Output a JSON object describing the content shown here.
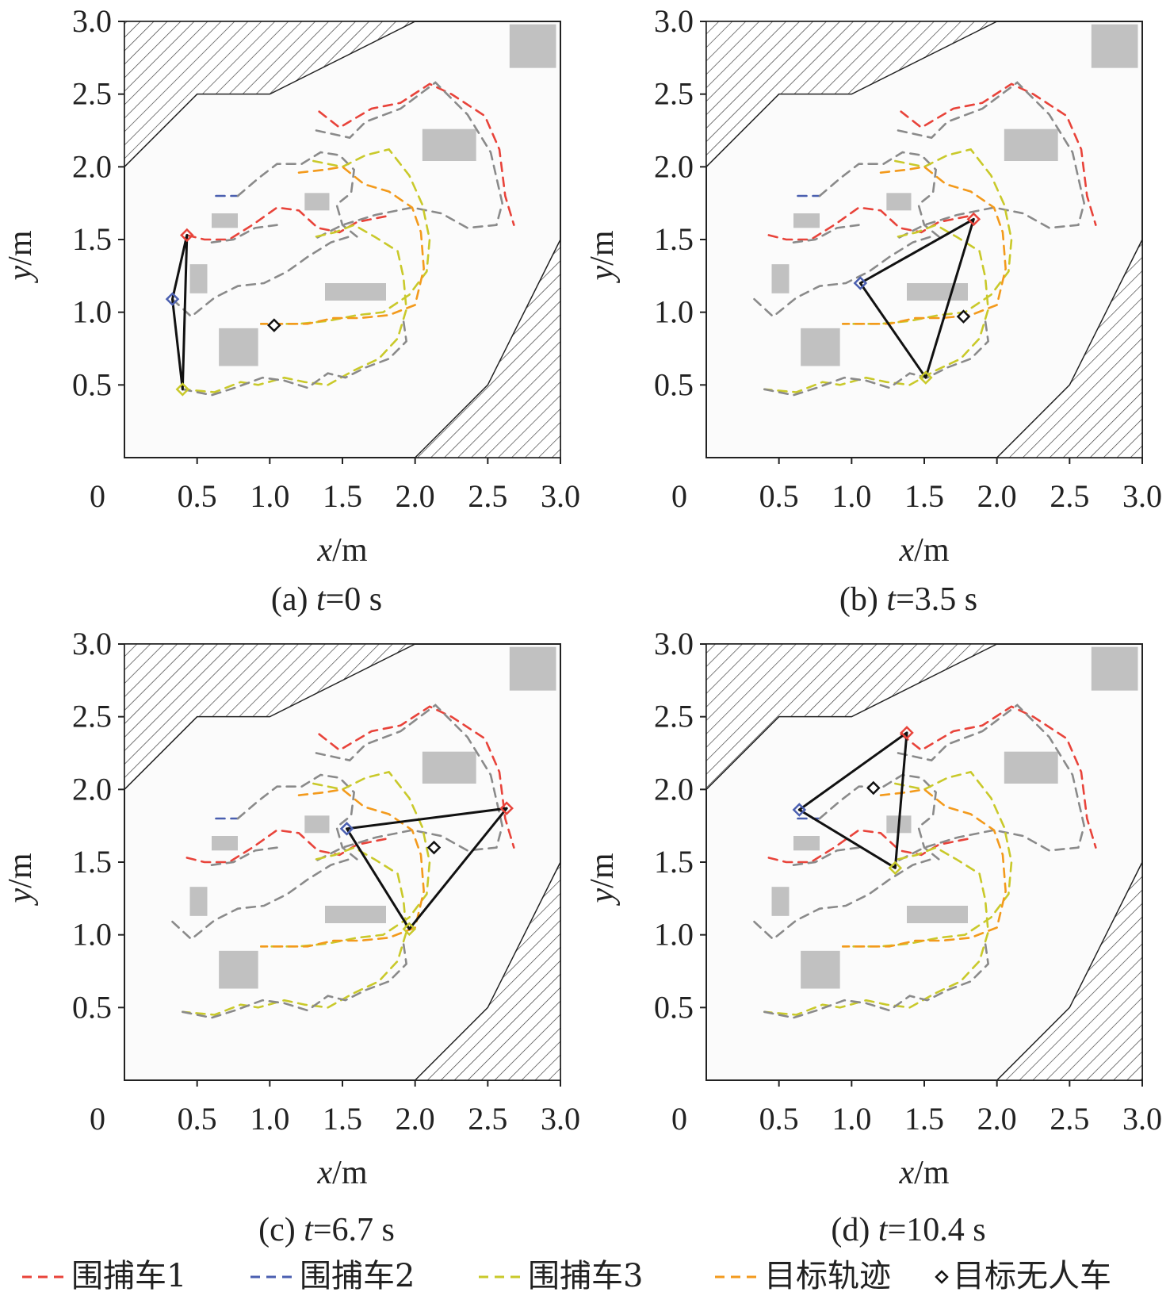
{
  "colors": {
    "capture1": "#e8433a",
    "capture2": "#4a5fb0",
    "capture3": "#c9c92a",
    "target": "#f39a1c",
    "obstacle": "#c1c1c1",
    "grey_path": "#8a8a8a",
    "formation": "#111111"
  },
  "icons": {
    "target_marker": "diamond-icon"
  },
  "legend": [
    {
      "label": "围捕车1",
      "kind": "dash",
      "color_key": "capture1"
    },
    {
      "label": "围捕车2",
      "kind": "dash",
      "color_key": "capture2"
    },
    {
      "label": "围捕车3",
      "kind": "dash",
      "color_key": "capture3"
    },
    {
      "label": "目标轨迹",
      "kind": "dash",
      "color_key": "target"
    },
    {
      "label": "目标无人车",
      "kind": "marker",
      "color_key": "formation"
    }
  ],
  "chart_data": [
    {
      "type": "line",
      "caption_prefix": "(a) ",
      "caption_var": "t",
      "caption_value": "=0 s",
      "xlabel_var": "x",
      "xlabel_unit": "/m",
      "ylabel_var": "y",
      "ylabel_unit": "/m",
      "xlim": [
        0,
        3.0
      ],
      "ylim": [
        0,
        3.0
      ],
      "xticks": [
        "0",
        "0.5",
        "1.0",
        "1.5",
        "2.0",
        "2.5",
        "3.0"
      ],
      "yticks": [
        "0.5",
        "1.0",
        "1.5",
        "2.0",
        "2.5",
        "3.0"
      ],
      "capture_vehicles": [
        [
          0.43,
          1.53
        ],
        [
          0.33,
          1.09
        ],
        [
          0.4,
          0.47
        ]
      ],
      "target": [
        1.03,
        0.91
      ]
    },
    {
      "type": "line",
      "caption_prefix": "(b) ",
      "caption_var": "t",
      "caption_value": "=3.5 s",
      "xlabel_var": "x",
      "xlabel_unit": "/m",
      "ylabel_var": "y",
      "ylabel_unit": "/m",
      "xlim": [
        0,
        3.0
      ],
      "ylim": [
        0,
        3.0
      ],
      "xticks": [
        "0",
        "0.5",
        "1.0",
        "1.5",
        "2.0",
        "2.5",
        "3.0"
      ],
      "yticks": [
        "0.5",
        "1.0",
        "1.5",
        "2.0",
        "2.5",
        "3.0"
      ],
      "capture_vehicles": [
        [
          1.84,
          1.64
        ],
        [
          1.06,
          1.2
        ],
        [
          1.51,
          0.55
        ]
      ],
      "target": [
        1.77,
        0.97
      ]
    },
    {
      "type": "line",
      "caption_prefix": "(c) ",
      "caption_var": "t",
      "caption_value": "=6.7 s",
      "xlabel_var": "x",
      "xlabel_unit": "/m",
      "ylabel_var": "y",
      "ylabel_unit": "/m",
      "xlim": [
        0,
        3.0
      ],
      "ylim": [
        0,
        3.0
      ],
      "xticks": [
        "0",
        "0.5",
        "1.0",
        "1.5",
        "2.0",
        "2.5",
        "3.0"
      ],
      "yticks": [
        "0.5",
        "1.0",
        "1.5",
        "2.0",
        "2.5",
        "3.0"
      ],
      "capture_vehicles": [
        [
          2.63,
          1.87
        ],
        [
          1.53,
          1.73
        ],
        [
          1.96,
          1.04
        ]
      ],
      "target": [
        2.13,
        1.6
      ]
    },
    {
      "type": "line",
      "caption_prefix": "(d) ",
      "caption_var": "t",
      "caption_value": "=10.4 s",
      "xlabel_var": "x",
      "xlabel_unit": "/m",
      "ylabel_var": "y",
      "ylabel_unit": "/m",
      "xlim": [
        0,
        3.0
      ],
      "ylim": [
        0,
        3.0
      ],
      "xticks": [
        "0",
        "0.5",
        "1.0",
        "1.5",
        "2.0",
        "2.5",
        "3.0"
      ],
      "yticks": [
        "0.5",
        "1.0",
        "1.5",
        "2.0",
        "2.5",
        "3.0"
      ],
      "capture_vehicles": [
        [
          1.38,
          2.39
        ],
        [
          0.64,
          1.86
        ],
        [
          1.3,
          1.46
        ]
      ],
      "target": [
        1.15,
        2.01
      ]
    }
  ],
  "environment": {
    "hatched_regions": [
      [
        [
          0.0,
          2.0
        ],
        [
          0.5,
          2.5
        ],
        [
          1.0,
          2.5
        ],
        [
          2.0,
          3.0
        ],
        [
          0.0,
          3.0
        ]
      ],
      [
        [
          2.0,
          0.0
        ],
        [
          2.5,
          0.5
        ],
        [
          3.0,
          1.5
        ],
        [
          3.0,
          0.0
        ]
      ]
    ],
    "obstacles": [
      [
        2.65,
        2.68,
        0.32,
        0.3
      ],
      [
        2.05,
        2.04,
        0.37,
        0.22
      ],
      [
        1.24,
        1.7,
        0.17,
        0.12
      ],
      [
        0.6,
        1.58,
        0.18,
        0.1
      ],
      [
        0.45,
        1.13,
        0.12,
        0.2
      ],
      [
        1.38,
        1.08,
        0.42,
        0.12
      ],
      [
        0.65,
        0.63,
        0.27,
        0.26
      ]
    ],
    "trajectories": [
      {
        "color_key": "capture1",
        "points": [
          [
            1.34,
            2.38
          ],
          [
            1.48,
            2.27
          ],
          [
            1.7,
            2.4
          ],
          [
            1.9,
            2.44
          ],
          [
            2.1,
            2.57
          ],
          [
            2.25,
            2.5
          ],
          [
            2.48,
            2.35
          ],
          [
            2.58,
            2.12
          ],
          [
            2.62,
            1.8
          ],
          [
            2.68,
            1.6
          ]
        ]
      },
      {
        "color_key": "grey_path",
        "points": [
          [
            1.32,
            2.25
          ],
          [
            1.55,
            2.2
          ],
          [
            1.66,
            2.31
          ],
          [
            1.9,
            2.4
          ],
          [
            2.14,
            2.58
          ],
          [
            2.36,
            2.36
          ],
          [
            2.52,
            2.1
          ],
          [
            2.6,
            1.75
          ],
          [
            2.56,
            1.6
          ],
          [
            2.36,
            1.58
          ],
          [
            2.18,
            1.68
          ],
          [
            1.98,
            1.72
          ],
          [
            1.73,
            1.67
          ],
          [
            1.5,
            1.6
          ],
          [
            1.3,
            1.5
          ]
        ]
      },
      {
        "color_key": "capture1",
        "points": [
          [
            0.43,
            1.53
          ],
          [
            0.55,
            1.5
          ],
          [
            0.72,
            1.5
          ],
          [
            0.88,
            1.6
          ],
          [
            1.05,
            1.72
          ],
          [
            1.2,
            1.7
          ],
          [
            1.33,
            1.58
          ],
          [
            1.48,
            1.55
          ],
          [
            1.6,
            1.62
          ],
          [
            1.8,
            1.66
          ]
        ]
      },
      {
        "color_key": "capture2",
        "points": [
          [
            0.63,
            1.8
          ],
          [
            0.78,
            1.8
          ]
        ]
      },
      {
        "color_key": "grey_path",
        "points": [
          [
            0.78,
            1.8
          ],
          [
            0.92,
            1.92
          ],
          [
            1.05,
            2.02
          ],
          [
            1.22,
            2.02
          ],
          [
            1.35,
            2.1
          ],
          [
            1.48,
            2.08
          ],
          [
            1.58,
            1.98
          ],
          [
            1.56,
            1.82
          ],
          [
            1.46,
            1.74
          ],
          [
            1.5,
            1.6
          ],
          [
            1.6,
            1.52
          ]
        ]
      },
      {
        "color_key": "grey_path",
        "points": [
          [
            0.6,
            1.48
          ],
          [
            0.75,
            1.5
          ],
          [
            0.9,
            1.58
          ],
          [
            1.05,
            1.6
          ]
        ]
      },
      {
        "color_key": "capture3",
        "points": [
          [
            1.3,
            2.04
          ],
          [
            1.5,
            2.0
          ],
          [
            1.66,
            2.08
          ],
          [
            1.82,
            2.12
          ],
          [
            1.96,
            1.94
          ],
          [
            2.05,
            1.74
          ],
          [
            2.1,
            1.5
          ],
          [
            2.08,
            1.28
          ],
          [
            1.96,
            1.12
          ],
          [
            1.78,
            1.0
          ],
          [
            1.6,
            0.98
          ],
          [
            1.4,
            0.94
          ],
          [
            1.2,
            0.92
          ],
          [
            0.94,
            0.92
          ]
        ]
      },
      {
        "color_key": "grey_path",
        "points": [
          [
            0.33,
            1.09
          ],
          [
            0.46,
            0.97
          ],
          [
            0.62,
            1.1
          ],
          [
            0.78,
            1.18
          ],
          [
            0.96,
            1.2
          ],
          [
            1.12,
            1.28
          ],
          [
            1.26,
            1.38
          ],
          [
            1.42,
            1.48
          ],
          [
            1.58,
            1.53
          ]
        ]
      },
      {
        "color_key": "target",
        "points": [
          [
            1.2,
            1.96
          ],
          [
            1.38,
            1.98
          ],
          [
            1.5,
            2.0
          ],
          [
            1.65,
            1.88
          ],
          [
            1.82,
            1.83
          ],
          [
            1.98,
            1.72
          ],
          [
            2.04,
            1.55
          ],
          [
            2.06,
            1.3
          ],
          [
            2.0,
            1.05
          ],
          [
            1.82,
            0.98
          ],
          [
            1.62,
            0.96
          ],
          [
            1.44,
            0.96
          ],
          [
            1.26,
            0.92
          ],
          [
            1.05,
            0.92
          ],
          [
            0.94,
            0.92
          ]
        ]
      },
      {
        "color_key": "capture3",
        "points": [
          [
            1.32,
            1.52
          ],
          [
            1.45,
            1.55
          ],
          [
            1.58,
            1.6
          ],
          [
            1.72,
            1.52
          ],
          [
            1.88,
            1.42
          ],
          [
            1.92,
            1.24
          ],
          [
            1.94,
            1.02
          ],
          [
            1.88,
            0.82
          ],
          [
            1.75,
            0.68
          ],
          [
            1.58,
            0.6
          ],
          [
            1.4,
            0.5
          ],
          [
            1.24,
            0.52
          ],
          [
            1.1,
            0.55
          ],
          [
            0.92,
            0.5
          ],
          [
            0.8,
            0.52
          ],
          [
            0.62,
            0.45
          ],
          [
            0.4,
            0.47
          ]
        ]
      },
      {
        "color_key": "grey_path",
        "points": [
          [
            0.4,
            0.47
          ],
          [
            0.6,
            0.43
          ],
          [
            0.76,
            0.48
          ],
          [
            0.95,
            0.55
          ],
          [
            1.1,
            0.53
          ],
          [
            1.26,
            0.48
          ],
          [
            1.4,
            0.58
          ],
          [
            1.52,
            0.55
          ],
          [
            1.66,
            0.62
          ],
          [
            1.82,
            0.68
          ],
          [
            1.94,
            0.8
          ],
          [
            1.92,
            0.94
          ]
        ]
      }
    ]
  }
}
